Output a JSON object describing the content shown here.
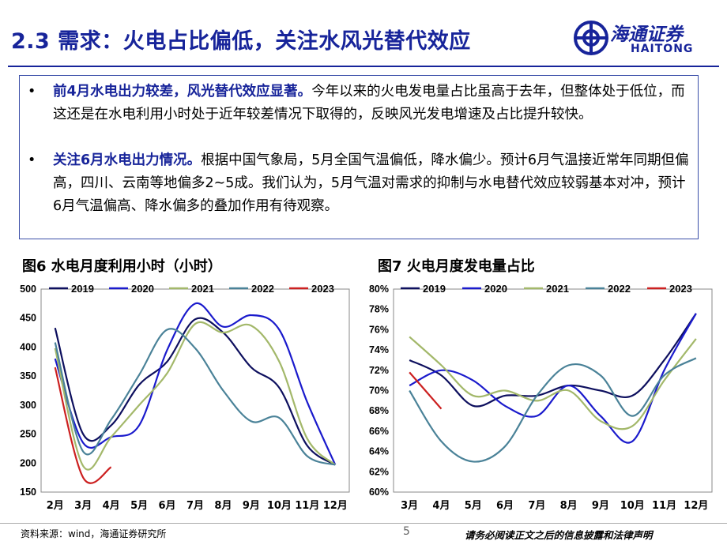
{
  "header": {
    "title": "2.3 需求：火电占比偏低，关注水风光替代效应",
    "logo_cn": "海通证券",
    "logo_en": "HAITONG"
  },
  "bullets": [
    {
      "bold": "前4月水电出力较差，风光替代效应显著。",
      "text": "今年以来的火电发电量占比虽高于去年，但整体处于低位，而这还是在水电利用小时处于近年较差情况下取得的，反映风光发电增速及占比提升较快。"
    },
    {
      "bold": "关注6月水电出力情况。",
      "text": "根据中国气象局，5月全国气温偏低，降水偏少。预计6月气温接近常年同期但偏高，四川、云南等地偏多2~5成。我们认为，5月气温对需求的抑制与水电替代效应较弱基本对冲，预计6月气温偏高、降水偏多的叠加作用有待观察。"
    }
  ],
  "footer": {
    "source": "资料来源：wind，海通证券研究所",
    "page": "5",
    "disclaimer": "请务必阅读正文之后的信息披露和法律声明"
  },
  "chart_data": [
    {
      "type": "line",
      "title": "图6 水电月度利用小时（小时）",
      "categories": [
        "2月",
        "3月",
        "4月",
        "5月",
        "6月",
        "7月",
        "8月",
        "9月",
        "10月",
        "11月",
        "12月"
      ],
      "ylim": [
        150,
        500
      ],
      "yticks": [
        150,
        200,
        250,
        300,
        350,
        400,
        450,
        500
      ],
      "legend": "top",
      "series": [
        {
          "name": "2019",
          "color": "#0d0f5e",
          "values": [
            433,
            250,
            265,
            335,
            375,
            448,
            425,
            365,
            330,
            230,
            197
          ]
        },
        {
          "name": "2020",
          "color": "#1a1acc",
          "values": [
            380,
            235,
            245,
            265,
            395,
            475,
            435,
            455,
            430,
            305,
            197
          ]
        },
        {
          "name": "2021",
          "color": "#a3b86a",
          "values": [
            398,
            195,
            245,
            300,
            355,
            440,
            425,
            437,
            375,
            242,
            197
          ]
        },
        {
          "name": "2022",
          "color": "#4a8298",
          "values": [
            408,
            220,
            275,
            352,
            430,
            398,
            325,
            272,
            278,
            212,
            197
          ]
        },
        {
          "name": "2023",
          "color": "#cc2020",
          "values": [
            365,
            175,
            193,
            null,
            null,
            null,
            null,
            null,
            null,
            null,
            null
          ]
        }
      ]
    },
    {
      "type": "line",
      "title": "图7 火电月度发电量占比",
      "categories": [
        "3月",
        "4月",
        "5月",
        "6月",
        "7月",
        "8月",
        "9月",
        "10月",
        "11月",
        "12月"
      ],
      "ylim": [
        60,
        80
      ],
      "yticks": [
        60,
        62,
        64,
        66,
        68,
        70,
        72,
        74,
        76,
        78,
        80
      ],
      "ytick_suffix": "%",
      "legend": "top",
      "series": [
        {
          "name": "2019",
          "color": "#0d0f5e",
          "values": [
            73.0,
            71.5,
            68.5,
            69.5,
            69.5,
            70.5,
            70.0,
            69.5,
            73.0,
            77.6
          ]
        },
        {
          "name": "2020",
          "color": "#1a1acc",
          "values": [
            70.5,
            72.0,
            71.0,
            68.5,
            67.5,
            70.5,
            67.5,
            65.0,
            72.0,
            77.6
          ]
        },
        {
          "name": "2021",
          "color": "#a3b86a",
          "values": [
            75.3,
            72.5,
            69.5,
            70.0,
            69.0,
            70.0,
            67.0,
            66.5,
            71.0,
            75.1
          ]
        },
        {
          "name": "2022",
          "color": "#4a8298",
          "values": [
            70.0,
            65.0,
            63.0,
            64.5,
            69.5,
            72.5,
            71.5,
            67.5,
            71.5,
            73.2
          ]
        },
        {
          "name": "2023",
          "color": "#cc2020",
          "values": [
            71.8,
            68.2,
            null,
            null,
            null,
            null,
            null,
            null,
            null,
            null
          ]
        }
      ]
    }
  ]
}
